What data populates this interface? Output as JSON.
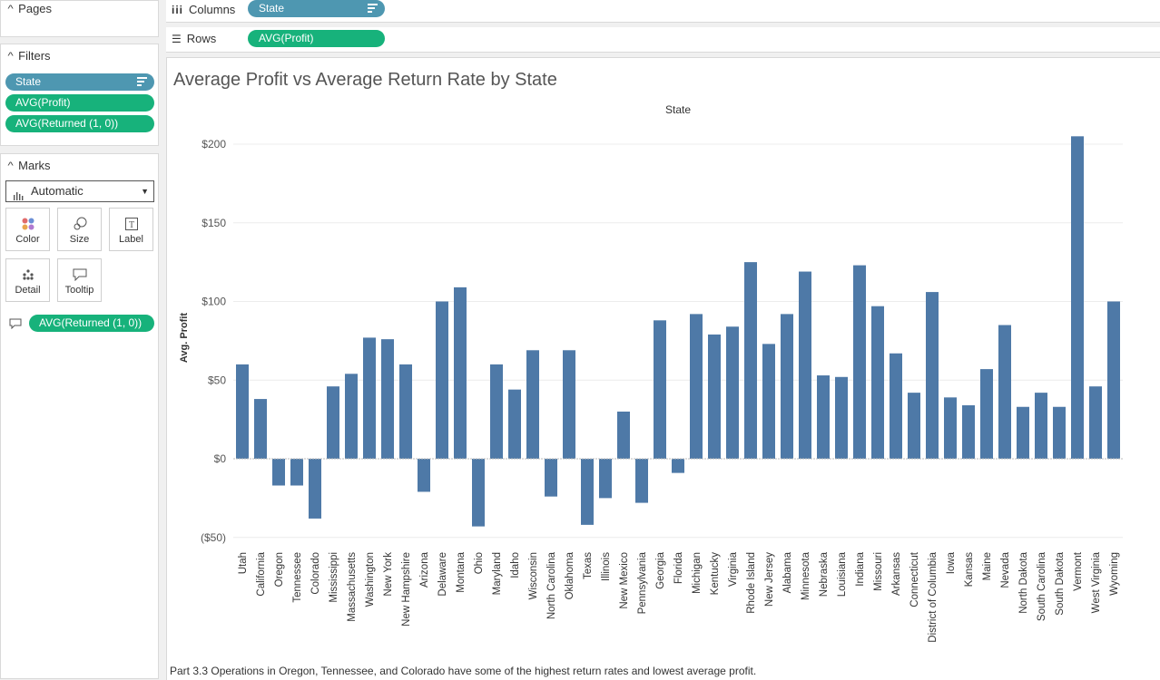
{
  "sidebar": {
    "pages": {
      "title": "Pages"
    },
    "filters": {
      "title": "Filters",
      "items": [
        "State",
        "AVG(Profit)",
        "AVG(Returned (1, 0))"
      ]
    },
    "marks": {
      "title": "Marks",
      "type_select": "Automatic",
      "buttons": [
        "Color",
        "Size",
        "Label",
        "Detail",
        "Tooltip"
      ],
      "tooltip_field": "AVG(Returned (1, 0))"
    }
  },
  "shelves": {
    "columns": {
      "label": "Columns",
      "pill": "State"
    },
    "rows": {
      "label": "Rows",
      "pill": "AVG(Profit)"
    }
  },
  "viz": {
    "title": "Average Profit vs Average Return Rate by State",
    "caption": "Part 3.3 Operations in Oregon, Tennessee, and Colorado have some of the highest return rates and lowest average profit."
  },
  "colors": {
    "bar": "#4e79a7",
    "pill_blue": "#4e97b1",
    "pill_green": "#17b27b"
  },
  "chart_data": {
    "type": "bar",
    "title": "State",
    "xlabel": "",
    "ylabel": "Avg. Profit",
    "ylim": [
      -50,
      210
    ],
    "yticks": [
      -50,
      0,
      50,
      100,
      150,
      200
    ],
    "ytick_labels": [
      "($50)",
      "$0",
      "$50",
      "$100",
      "$150",
      "$200"
    ],
    "grid": true,
    "categories": [
      "Utah",
      "California",
      "Oregon",
      "Tennessee",
      "Colorado",
      "Mississippi",
      "Massachusetts",
      "Washington",
      "New York",
      "New Hampshire",
      "Arizona",
      "Delaware",
      "Montana",
      "Ohio",
      "Maryland",
      "Idaho",
      "Wisconsin",
      "North Carolina",
      "Oklahoma",
      "Texas",
      "Illinois",
      "New Mexico",
      "Pennsylvania",
      "Georgia",
      "Florida",
      "Michigan",
      "Kentucky",
      "Virginia",
      "Rhode Island",
      "New Jersey",
      "Alabama",
      "Minnesota",
      "Nebraska",
      "Louisiana",
      "Indiana",
      "Missouri",
      "Arkansas",
      "Connecticut",
      "District of Columbia",
      "Iowa",
      "Kansas",
      "Maine",
      "Nevada",
      "North Dakota",
      "South Carolina",
      "South Dakota",
      "Vermont",
      "West Virginia",
      "Wyoming"
    ],
    "values": [
      60,
      38,
      -17,
      -17,
      -38,
      46,
      54,
      77,
      76,
      60,
      -21,
      100,
      109,
      -43,
      60,
      44,
      69,
      -24,
      69,
      -42,
      -25,
      30,
      -28,
      88,
      -9,
      92,
      79,
      84,
      125,
      73,
      92,
      119,
      53,
      52,
      123,
      97,
      67,
      42,
      106,
      39,
      34,
      57,
      85,
      33,
      42,
      33,
      205,
      46,
      100
    ]
  }
}
